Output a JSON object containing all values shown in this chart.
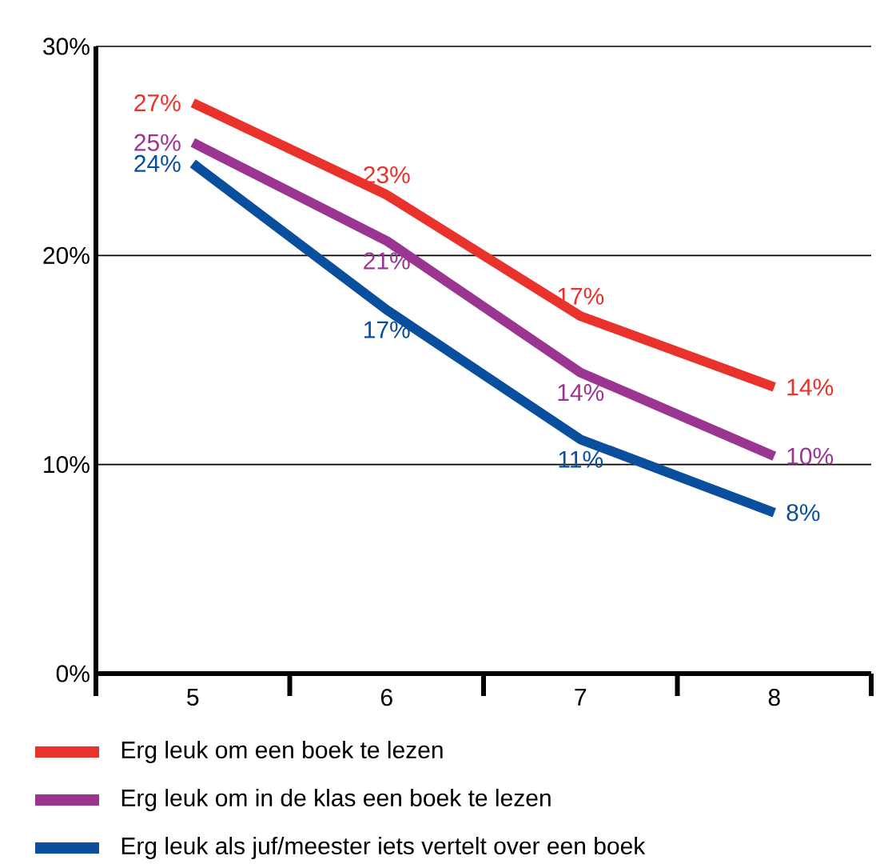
{
  "chart_data": {
    "type": "line",
    "categories": [
      "5",
      "6",
      "7",
      "8"
    ],
    "series": [
      {
        "name": "Erg leuk om een boek te lezen",
        "color": "#e8322b",
        "values": [
          27.3,
          22.9,
          17.1,
          13.7
        ],
        "value_labels": [
          "27%",
          "23%",
          "17%",
          "14%"
        ]
      },
      {
        "name": "Erg leuk om in de klas een boek te lezen",
        "color": "#9b3592",
        "values": [
          25.4,
          20.7,
          14.4,
          10.4
        ],
        "value_labels": [
          "25%",
          "21%",
          "14%",
          "10%"
        ]
      },
      {
        "name": "Erg leuk als juf/meester iets vertelt over een boek",
        "color": "#0a4f9e",
        "values": [
          24.4,
          17.4,
          11.2,
          7.7
        ],
        "value_labels": [
          "24%",
          "17%",
          "11%",
          "8%"
        ]
      }
    ],
    "ylim": [
      0,
      30
    ],
    "yticks": [
      {
        "value": 0,
        "label": "0%"
      },
      {
        "value": 10,
        "label": "10%"
      },
      {
        "value": 20,
        "label": "20%"
      },
      {
        "value": 30,
        "label": "30%"
      }
    ],
    "grid": "y",
    "legend": "bottom",
    "marker": "none",
    "line_style": "solid"
  }
}
